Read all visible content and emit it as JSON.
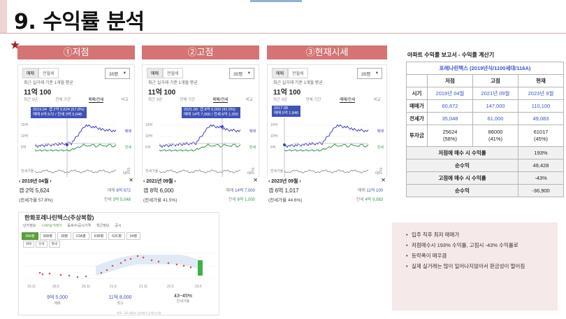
{
  "title": "9. 수익률 분석",
  "panels": [
    {
      "header": "①저점",
      "tabs": [
        "매매",
        "전월세"
      ],
      "area": "35평",
      "subtitle": "최근 실거래 기준 1개월 평균",
      "price": "11억 100",
      "periods": [
        "최근 3년",
        "전체 기간",
        "매매/전세",
        "비교"
      ],
      "tooltip": "2019.04  갭 2억 5,624 (57.8%)\n매매 6억 672 / 전세 3억 5,048",
      "y_ticks": [
        "15억",
        "10억",
        "5억"
      ],
      "y_ticks2": [
        "전세가율"
      ],
      "x_ticks": [
        "2018",
        "2020",
        "2022"
      ],
      "legend": [
        "매매",
        "전세"
      ],
      "legend2": [
        "갭",
        "68%"
      ],
      "date": "2019년 04월",
      "close": "✕",
      "gap": "갭 2억 5,624",
      "rate": "(전세가율 57.8%)",
      "sale_label": "매매",
      "sale": "6억 672",
      "rent_label": "전세",
      "rent": "3억 5,048"
    },
    {
      "header": "②고점",
      "tabs": [
        "매매",
        "전월세"
      ],
      "area": "35평",
      "subtitle": "최근 실거래 기준 1개월 평균",
      "price": "11억 100",
      "periods": [
        "최근 3년",
        "전체 기간",
        "매매/전세",
        "비교"
      ],
      "tooltip": "2021.09  갭 8억 6,000 (41.5%)\n매매 14억 7,000 / 전세 6억 1,000",
      "y_ticks": [
        "15억",
        "10억",
        "5억"
      ],
      "y_ticks2": [
        "전세가율"
      ],
      "x_ticks": [
        "2018",
        "2020",
        "2022"
      ],
      "legend": [
        "매매",
        "전세"
      ],
      "legend2": [
        "갭",
        "68%"
      ],
      "date": "2021년 09월",
      "close": "✕",
      "gap": "갭 8억 6,000",
      "rate": "(전세가율 41.5%)",
      "sale_label": "매매",
      "sale": "14억 7,000",
      "rent_label": "전세",
      "rent": "6억 1,000"
    },
    {
      "header": "③현재시세",
      "tabs": [
        "매매",
        "전월세"
      ],
      "area": "35평",
      "subtitle": "최근 실거래 기준 1개월 평균",
      "price": "11억 100",
      "periods": [
        "최근 3년",
        "전체 기간",
        "매매/전세",
        "비교"
      ],
      "tooltip": "2017.08\n매매 5억 1,840",
      "y_ticks": [
        "15억",
        "10억",
        "5억"
      ],
      "y_ticks2": [
        "전세가율"
      ],
      "x_ticks": [
        "2018",
        "2020",
        "2022"
      ],
      "legend": [
        "매매",
        "전세"
      ],
      "legend2": [
        "갭",
        "68%"
      ],
      "date": "2023년 09월",
      "close": "✕",
      "gap": "갭 6억 1,017",
      "rate": "(전세가율 44.6%)",
      "sale_label": "매매",
      "sale": "11억 100",
      "rent_label": "전세",
      "rent": "4억 9,083"
    }
  ],
  "bottom_panel": {
    "title": "한화포레나린텍스(주상복합)",
    "nav": [
      "단지정보",
      "시세/실거래가",
      "동호수/공시가격",
      "학군정보",
      "공시"
    ],
    "types": [
      "35A평",
      "35B평",
      "39평",
      "63A평",
      "63B평",
      "63C평",
      "64평"
    ],
    "chips": [
      "매매",
      "전세",
      "월세"
    ],
    "x_ticks": [
      "19.11",
      "20.5",
      "20.11",
      "21.5",
      "21.11",
      "22.5",
      "23.5"
    ],
    "stats": [
      {
        "value": "9억 5,000",
        "label": "매매"
      },
      {
        "value": "11억 8,000",
        "label": "최고"
      },
      {
        "value": "43~45%",
        "label": "전세가율"
      }
    ],
    "caption": "자료: 국토교통부 실거래가 공개시스템"
  },
  "summary": {
    "title": "아파트 수익률 보고서 - 수익률 계산기",
    "complex": "포레나린텍스 (2019년식/1100세대/116A)",
    "headers": [
      "저점",
      "고점",
      "현재"
    ],
    "rows": [
      {
        "label": "시기",
        "values": [
          "2019년 04월",
          "2021년 09월",
          "2023년 9월"
        ]
      },
      {
        "label": "매매가",
        "values": [
          "60,672",
          "147,000",
          "110,100"
        ]
      },
      {
        "label": "전세가",
        "values": [
          "35,048",
          "61,000",
          "49,083"
        ]
      },
      {
        "label": "투자금",
        "values": [
          "25624\n(58%)",
          "86000\n(41%)",
          "61017\n(45%)"
        ]
      }
    ],
    "results": [
      {
        "label": "저점에 매수 시 수익률",
        "value": "193%"
      },
      {
        "label": "순수익",
        "value": "49,428"
      },
      {
        "label": "고점에 매수 시 수익률",
        "value": "-43%"
      },
      {
        "label": "순수익",
        "value": "-36,900"
      }
    ]
  },
  "notes": [
    "입주 직후 최저 매매가",
    "저점매수시 193% 수익률, 고점시 -43% 수익률로",
    "등락폭이 매우큼",
    "실제 실거래는 많이 일어나지않아서 환금성이 떨어짐"
  ]
}
